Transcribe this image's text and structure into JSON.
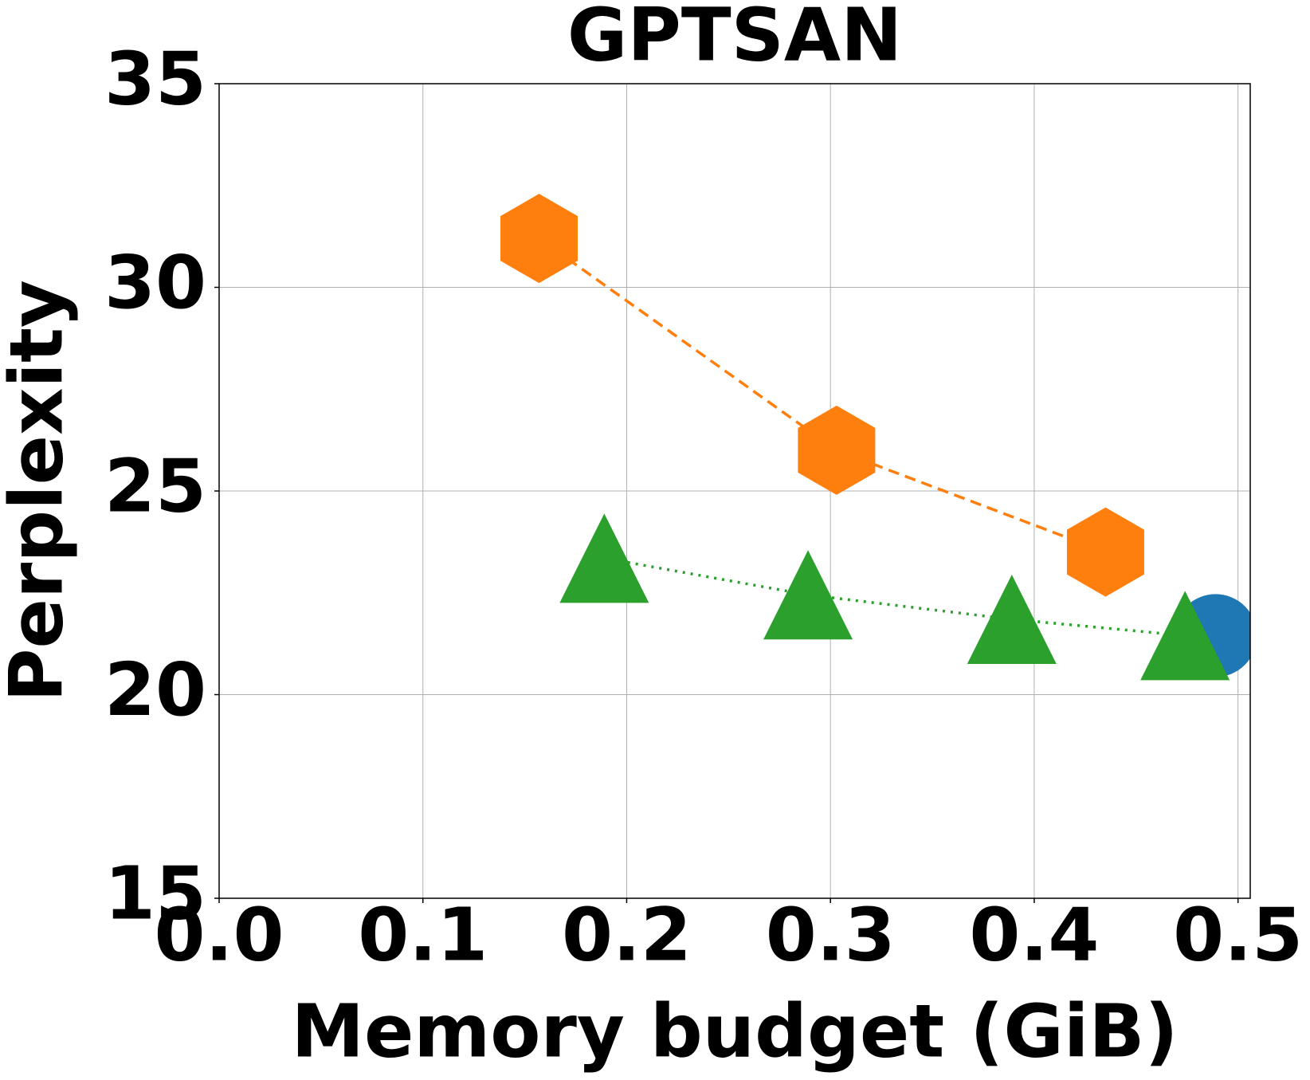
{
  "chart_data": {
    "type": "line",
    "title": "GPTSAN",
    "x_label": "Memory budget (GiB)",
    "y_label": "Perplexity",
    "xlim": [
      0,
      0.506
    ],
    "ylim": [
      15,
      35
    ],
    "xticks": [
      {
        "value": 0,
        "label": "0.0"
      },
      0.1,
      0.2,
      0.3,
      0.4,
      0.5
    ],
    "yticks": [
      15,
      20,
      25,
      30,
      35
    ],
    "grid": true,
    "series": [
      {
        "color": "#ff7f0e",
        "marker": "hexagon",
        "linestyle": "dashed",
        "x": [
          0.157,
          0.303,
          0.435
        ],
        "values": [
          31.2,
          26.0,
          23.5
        ]
      },
      {
        "color": "#2ca02c",
        "marker": "triangle",
        "linestyle": "dotted",
        "x": [
          0.189,
          0.289,
          0.389,
          0.474
        ],
        "values": [
          23.35,
          22.45,
          21.85,
          21.45
        ]
      },
      {
        "color": "#1f77b4",
        "marker": "circle",
        "linestyle": "none",
        "x": [
          0.489
        ],
        "values": [
          21.45
        ]
      }
    ]
  }
}
